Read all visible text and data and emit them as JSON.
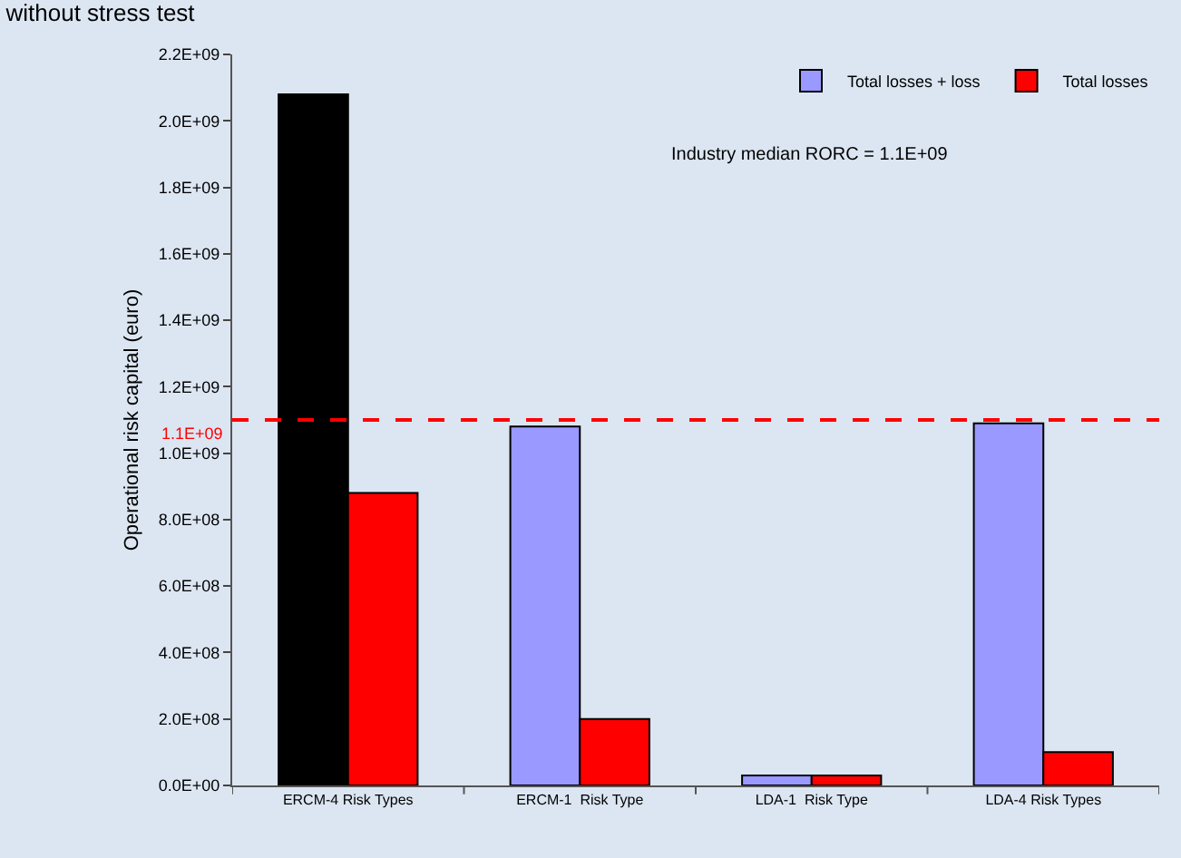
{
  "chart_data": {
    "type": "bar",
    "title": "without stress test",
    "ylabel": "Operational risk capital (euro)",
    "categories": [
      "ERCM-4 Risk Types",
      "ERCM-1  Risk Type",
      "LDA-1  Risk Type",
      "LDA-4 Risk Types"
    ],
    "series": [
      {
        "name": "Total losses + loss",
        "color": "#9999ff",
        "colors": [
          "#000000",
          "#9999ff",
          "#9999ff",
          "#9999ff"
        ],
        "values": [
          2080000000.0,
          1080000000.0,
          30000000.0,
          1090000000.0
        ]
      },
      {
        "name": "Total losses",
        "color": "#ff0000",
        "values": [
          880000000.0,
          200000000.0,
          30000000.0,
          100000000.0
        ]
      }
    ],
    "ylim": [
      0,
      2200000000.0
    ],
    "yticks": [
      {
        "value": 0,
        "label": "0.0E+00"
      },
      {
        "value": 200000000.0,
        "label": "2.0E+08"
      },
      {
        "value": 400000000.0,
        "label": "4.0E+08"
      },
      {
        "value": 600000000.0,
        "label": "6.0E+08"
      },
      {
        "value": 800000000.0,
        "label": "8.0E+08"
      },
      {
        "value": 1000000000.0,
        "label": "1.0E+09"
      },
      {
        "value": 1200000000.0,
        "label": "1.2E+09"
      },
      {
        "value": 1400000000.0,
        "label": "1.4E+09"
      },
      {
        "value": 1600000000.0,
        "label": "1.6E+09"
      },
      {
        "value": 1800000000.0,
        "label": "1.8E+09"
      },
      {
        "value": 2000000000.0,
        "label": "2.0E+09"
      },
      {
        "value": 2200000000.0,
        "label": "2.2E+09"
      }
    ],
    "ref_lines": [
      {
        "axis": "y",
        "value": 1100000000.0,
        "label": "1.1E+09",
        "color": "#ff0000",
        "line_style": "dashed"
      }
    ],
    "annotations": [
      "Industry median RORC = 1.1E+09"
    ],
    "legend": "top right",
    "grid": false
  }
}
